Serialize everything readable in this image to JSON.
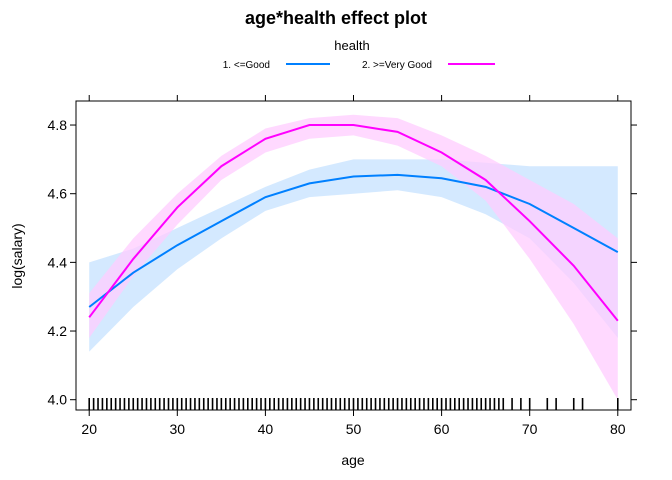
{
  "chart_data": {
    "type": "line",
    "title": "age*health effect plot",
    "xlabel": "age",
    "ylabel": "log(salary)",
    "xlim": [
      18.5,
      81.5
    ],
    "ylim": [
      3.97,
      4.87
    ],
    "x_ticks": [
      20,
      30,
      40,
      50,
      60,
      70,
      80
    ],
    "x_tick_labels": [
      "20",
      "30",
      "40",
      "50",
      "60",
      "70",
      "80"
    ],
    "y_ticks": [
      4.0,
      4.2,
      4.4,
      4.6,
      4.8
    ],
    "y_tick_labels": [
      "4.0",
      "4.2",
      "4.4",
      "4.6",
      "4.8"
    ],
    "grid": false,
    "legend": {
      "title": "health",
      "placement": "top",
      "entries": [
        "1. <=Good",
        "2. >=Very Good"
      ]
    },
    "series": [
      {
        "name": "1. <=Good",
        "color": "#0080ff",
        "band_color": "#cce5ff",
        "x": [
          20,
          25,
          30,
          35,
          40,
          45,
          50,
          55,
          60,
          65,
          70,
          75,
          80
        ],
        "y": [
          4.27,
          4.37,
          4.45,
          4.52,
          4.59,
          4.63,
          4.65,
          4.655,
          4.645,
          4.62,
          4.57,
          4.5,
          4.43
        ],
        "lower": [
          4.14,
          4.27,
          4.38,
          4.47,
          4.55,
          4.59,
          4.6,
          4.61,
          4.59,
          4.54,
          4.47,
          4.34,
          4.18
        ],
        "upper": [
          4.4,
          4.44,
          4.5,
          4.56,
          4.62,
          4.67,
          4.7,
          4.7,
          4.7,
          4.69,
          4.68,
          4.68,
          4.68
        ]
      },
      {
        "name": "2. >=Very Good",
        "color": "#ff00ff",
        "band_color": "#ffccff",
        "x": [
          20,
          25,
          30,
          35,
          40,
          45,
          50,
          55,
          60,
          65,
          70,
          75,
          80
        ],
        "y": [
          4.24,
          4.41,
          4.56,
          4.68,
          4.76,
          4.8,
          4.8,
          4.78,
          4.72,
          4.64,
          4.52,
          4.39,
          4.23
        ],
        "lower": [
          4.18,
          4.36,
          4.51,
          4.64,
          4.72,
          4.76,
          4.77,
          4.74,
          4.68,
          4.58,
          4.41,
          4.22,
          4.0
        ],
        "upper": [
          4.31,
          4.47,
          4.6,
          4.71,
          4.79,
          4.82,
          4.83,
          4.82,
          4.77,
          4.71,
          4.64,
          4.57,
          4.47
        ]
      }
    ],
    "rug": {
      "x": [
        20,
        20.5,
        21,
        21.5,
        22,
        22.5,
        23,
        23.5,
        24,
        24.5,
        25,
        25.5,
        26,
        26.5,
        27,
        27.5,
        28,
        28.5,
        29,
        29.5,
        30,
        30.5,
        31,
        31.5,
        32,
        32.5,
        33,
        33.5,
        34,
        34.5,
        35,
        35.5,
        36,
        36.5,
        37,
        37.5,
        38,
        38.5,
        39,
        39.5,
        40,
        40.5,
        41,
        41.5,
        42,
        42.5,
        43,
        43.5,
        44,
        44.5,
        45,
        45.5,
        46,
        46.5,
        47,
        47.5,
        48,
        48.5,
        49,
        49.5,
        50,
        50.5,
        51,
        51.5,
        52,
        52.5,
        53,
        53.5,
        54,
        54.5,
        55,
        55.5,
        56,
        56.5,
        57,
        57.5,
        58,
        58.5,
        59,
        59.5,
        60,
        60.5,
        61,
        61.5,
        62,
        62.5,
        63,
        63.5,
        64,
        64.5,
        65,
        65.5,
        66,
        66.5,
        67,
        68,
        69,
        70,
        72,
        73,
        75,
        76,
        80
      ]
    }
  }
}
